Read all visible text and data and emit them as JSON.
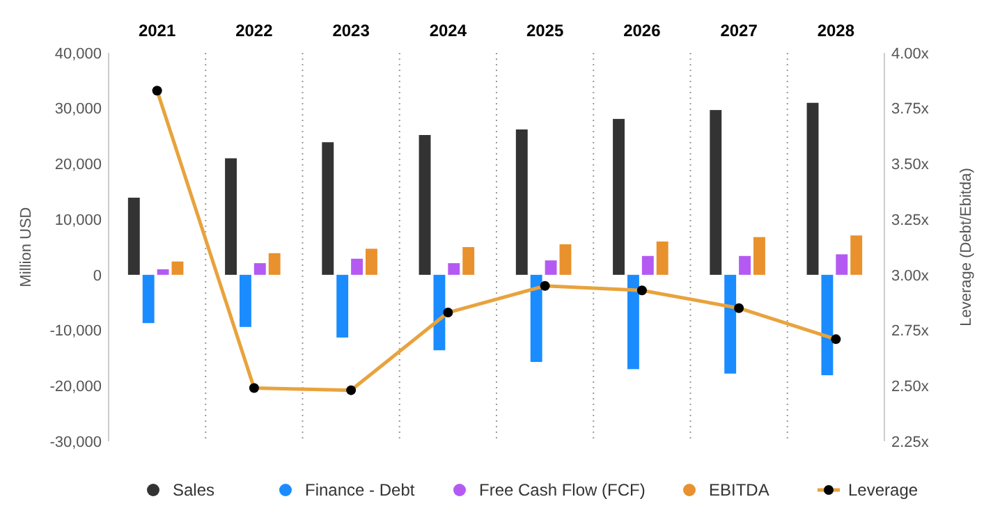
{
  "chart_data": {
    "type": "bar",
    "categories": [
      "2021",
      "2022",
      "2023",
      "2024",
      "2025",
      "2026",
      "2027",
      "2028"
    ],
    "ylabel": "Million USD",
    "y2label": "Leverage (Debt/Ebitda)",
    "ylim": [
      -30000,
      40000
    ],
    "yticks": [
      {
        "value": -30000,
        "label": "-30,000"
      },
      {
        "value": -20000,
        "label": "-20,000"
      },
      {
        "value": -10000,
        "label": "-10,000"
      },
      0,
      {
        "value": 10000,
        "label": "10,000"
      },
      {
        "value": 20000,
        "label": "20,000"
      },
      {
        "value": 30000,
        "label": "30,000"
      },
      {
        "value": 40000,
        "label": "40,000"
      }
    ],
    "y2lim": [
      2.25,
      4
    ],
    "y2ticks": [
      {
        "value": 2.25,
        "label": "2.25x"
      },
      {
        "value": 2.5,
        "label": "2.50x"
      },
      {
        "value": 2.75,
        "label": "2.75x"
      },
      {
        "value": 3,
        "label": "3.00x"
      },
      {
        "value": 3.25,
        "label": "3.25x"
      },
      {
        "value": 3.5,
        "label": "3.50x"
      },
      {
        "value": 3.75,
        "label": "3.75x"
      },
      {
        "value": 4,
        "label": "4.00x"
      }
    ],
    "series": [
      {
        "name": "Sales",
        "color": "#333333",
        "values": [
          13900,
          21000,
          23900,
          25200,
          26200,
          28100,
          29700,
          31000
        ]
      },
      {
        "name": "Finance - Debt",
        "color": "#1a8cff",
        "values": [
          -8700,
          -9400,
          -11300,
          -13600,
          -15700,
          -17000,
          -17800,
          -18100
        ]
      },
      {
        "name": "Free Cash Flow (FCF)",
        "color": "#b45af2",
        "values": [
          1000,
          2100,
          2900,
          2100,
          2600,
          3400,
          3400,
          3700
        ]
      },
      {
        "name": "EBITDA",
        "color": "#e8912d",
        "values": [
          2400,
          3900,
          4700,
          5000,
          5500,
          6000,
          6800,
          7100
        ]
      },
      {
        "name": "Leverage",
        "type": "line",
        "axis": "y2",
        "color": "#e8a33d",
        "marker": "circle",
        "values": [
          3.83,
          2.49,
          2.48,
          2.83,
          2.95,
          2.93,
          2.85,
          2.71
        ]
      }
    ],
    "grid": "x",
    "legend": "bottom"
  }
}
